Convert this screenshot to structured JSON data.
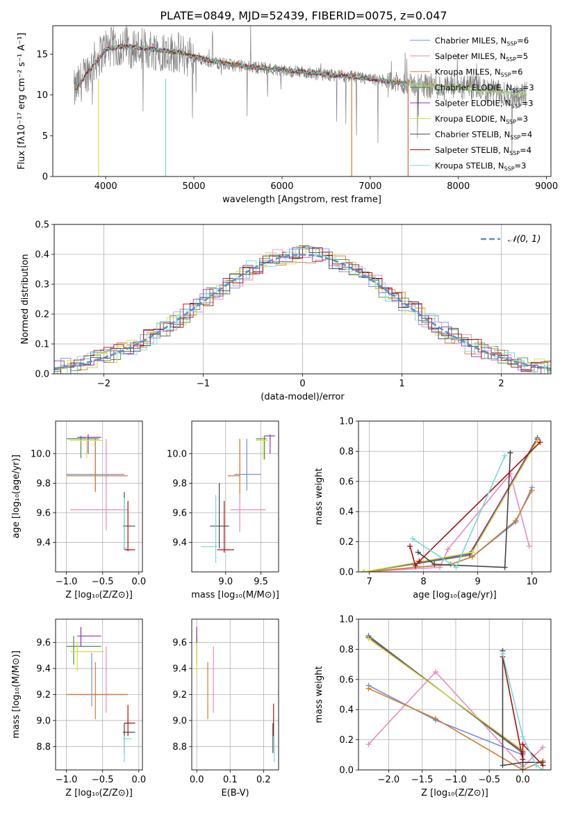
{
  "title": "PLATE=0849, MJD=52439, FIBERID=0075, z=0.047",
  "legend_entries": [
    {
      "key": "chm",
      "text": "Chabrier MILES, N",
      "sub": "SSP",
      "tail": "=6",
      "color": "#6f8fdc"
    },
    {
      "key": "sam",
      "text": "Salpeter MILES, N",
      "sub": "SSP",
      "tail": "=5",
      "color": "#e58bbf"
    },
    {
      "key": "krm",
      "text": "Kroupa MILES, N",
      "sub": "SSP",
      "tail": "=6",
      "color": "#d27d2a"
    },
    {
      "key": "che",
      "text": "Chabrier ELODIE, N",
      "sub": "SSP",
      "tail": "=3",
      "color": "#4a8a4a"
    },
    {
      "key": "sae",
      "text": "Salpeter ELODIE, N",
      "sub": "SSP",
      "tail": "=3",
      "color": "#8e2fb0"
    },
    {
      "key": "kre",
      "text": "Kroupa ELODIE, N",
      "sub": "SSP",
      "tail": "=3",
      "color": "#d3df3c"
    },
    {
      "key": "chs",
      "text": "Chabrier STELIB, N",
      "sub": "SSP",
      "tail": "=4",
      "color": "#444444"
    },
    {
      "key": "sas",
      "text": "Salpeter STELIB, N",
      "sub": "SSP",
      "tail": "=4",
      "color": "#a80d0d"
    },
    {
      "key": "krs",
      "text": "Kroupa STELIB, N",
      "sub": "SSP",
      "tail": "=3",
      "color": "#76d8d8"
    }
  ],
  "chart_data": [
    {
      "id": "spectrum",
      "type": "line",
      "xlabel": "wavelength [Angstrom, rest frame]",
      "ylabel": "Flux [fλ10⁻¹⁷ erg cm⁻² s⁻¹ A⁻¹]",
      "xlim": [
        3400,
        9050
      ],
      "ylim": [
        0,
        18.5
      ],
      "xticks": [
        "4000",
        "5000",
        "6000",
        "7000",
        "8000",
        "9000"
      ],
      "yticks": [
        "0",
        "5",
        "10",
        "15"
      ],
      "data_color": "#808080",
      "model_color": "#76d8d8",
      "data_curve": {
        "x": [
          3650,
          3800,
          4000,
          4200,
          4400,
          4600,
          4800,
          5000,
          5200,
          5400,
          5600,
          5800,
          6000,
          6200,
          6400,
          6600,
          6800,
          7000,
          7200,
          7400,
          7600,
          7800,
          8000,
          8200,
          8400,
          8600,
          8800
        ],
        "y": [
          10.5,
          13.0,
          15.8,
          15.9,
          15.7,
          15.5,
          15.2,
          14.6,
          14.1,
          13.7,
          13.5,
          13.3,
          13.0,
          12.8,
          12.6,
          12.4,
          12.2,
          11.9,
          11.6,
          11.4,
          11.2,
          11.0,
          10.9,
          10.8,
          10.4,
          10.1,
          10.0
        ]
      },
      "model_curve": {
        "x": [
          3650,
          3800,
          4000,
          4200,
          4400,
          4600,
          4800,
          5000,
          5200,
          5400,
          5600,
          5800,
          6000,
          6200,
          6400,
          6600,
          6800,
          7000,
          7200,
          7400,
          7600,
          7800,
          8000,
          8200,
          8400,
          8600
        ],
        "y": [
          10.4,
          12.8,
          15.6,
          16.0,
          15.8,
          15.5,
          15.3,
          14.7,
          14.2,
          13.8,
          13.5,
          13.3,
          13.1,
          12.9,
          12.7,
          12.4,
          12.3,
          12.0,
          11.7,
          11.4,
          11.2,
          11.0,
          10.9,
          10.7,
          10.5,
          10.2
        ]
      },
      "model_dips": [
        3920,
        4680,
        6790,
        7430
      ]
    },
    {
      "id": "residuals",
      "type": "histogram",
      "xlabel": "(data-model)/error",
      "ylabel": "Normed distribution",
      "xlim": [
        -2.5,
        2.5
      ],
      "ylim": [
        0,
        0.5
      ],
      "xticks": [
        "−2",
        "−1",
        "0",
        "1",
        "2"
      ],
      "yticks": [
        "0.0",
        "0.1",
        "0.2",
        "0.3",
        "0.4",
        "0.5"
      ],
      "legend": "𝒩(0, 1)",
      "reference_color": "#5a8fd0"
    },
    {
      "id": "age_vs_z",
      "type": "errorbar",
      "xlabel": "Z [log₁₀(Z/Z⊙)]",
      "ylabel": "age  [log₁₀(age/yr)]",
      "xlim": [
        -1.15,
        0.05
      ],
      "ylim": [
        9.2,
        10.22
      ],
      "xticks": [
        "−1.0",
        "−0.5",
        "0.0"
      ],
      "yticks": [
        "9.4",
        "9.6",
        "9.8",
        "10.0"
      ],
      "points": [
        {
          "s": "chm",
          "x": -0.6,
          "xe": [
            -1.0,
            -0.2
          ],
          "y": 9.86,
          "ye": [
            9.75,
            10.1
          ]
        },
        {
          "s": "sam",
          "x": -0.45,
          "xe": [
            -0.95,
            -0.15
          ],
          "y": 9.62,
          "ye": [
            9.48,
            10.1
          ]
        },
        {
          "s": "krm",
          "x": -0.6,
          "xe": [
            -1.0,
            -0.15
          ],
          "y": 9.85,
          "ye": [
            9.74,
            10.1
          ]
        },
        {
          "s": "che",
          "x": -0.8,
          "xe": [
            -1.0,
            -0.55
          ],
          "y": 10.1,
          "ye": [
            9.97,
            10.12
          ]
        },
        {
          "s": "sae",
          "x": -0.7,
          "xe": [
            -0.85,
            -0.52
          ],
          "y": 10.11,
          "ye": [
            10.0,
            10.13
          ]
        },
        {
          "s": "kre",
          "x": -0.72,
          "xe": [
            -0.95,
            -0.5
          ],
          "y": 10.09,
          "ye": [
            9.97,
            10.12
          ]
        },
        {
          "s": "chs",
          "x": -0.2,
          "xe": [
            -0.22,
            -0.05
          ],
          "y": 9.51,
          "ye": [
            9.35,
            9.74
          ]
        },
        {
          "s": "sas",
          "x": -0.15,
          "xe": [
            -0.2,
            -0.05
          ],
          "y": 9.35,
          "ye": [
            9.34,
            9.68
          ]
        },
        {
          "s": "krs",
          "x": -0.2,
          "xe": [
            -0.22,
            -0.15
          ],
          "y": 9.36,
          "ye": [
            9.35,
            9.7
          ]
        }
      ]
    },
    {
      "id": "age_vs_mass",
      "type": "errorbar",
      "xlabel": "mass [log₁₀(M/M⊙)]",
      "ylabel": "",
      "xlim": [
        8.52,
        9.75
      ],
      "ylim": [
        9.2,
        10.22
      ],
      "xticks": [
        "9.0",
        "9.5"
      ],
      "yticks": [
        "9.4",
        "9.6",
        "9.8",
        "10.0"
      ],
      "points": [
        {
          "s": "chm",
          "x": 9.3,
          "xe": [
            9.12,
            9.5
          ],
          "y": 9.86,
          "ye": [
            9.75,
            10.1
          ]
        },
        {
          "s": "sam",
          "x": 9.2,
          "xe": [
            9.07,
            9.57
          ],
          "y": 9.62,
          "ye": [
            9.47,
            10.1
          ]
        },
        {
          "s": "krm",
          "x": 9.2,
          "xe": [
            9.03,
            9.2
          ],
          "y": 9.85,
          "ye": [
            9.73,
            10.1
          ]
        },
        {
          "s": "che",
          "x": 9.55,
          "xe": [
            9.43,
            9.58
          ],
          "y": 10.1,
          "ye": [
            9.96,
            10.12
          ]
        },
        {
          "s": "sae",
          "x": 9.63,
          "xe": [
            9.55,
            9.7
          ],
          "y": 10.12,
          "ye": [
            10.0,
            10.13
          ]
        },
        {
          "s": "kre",
          "x": 9.53,
          "xe": [
            9.43,
            9.6
          ],
          "y": 10.09,
          "ye": [
            9.96,
            10.12
          ]
        },
        {
          "s": "chs",
          "x": 8.91,
          "xe": [
            8.78,
            9.05
          ],
          "y": 9.51,
          "ye": [
            9.36,
            9.8
          ]
        },
        {
          "s": "sas",
          "x": 8.98,
          "xe": [
            8.88,
            9.12
          ],
          "y": 9.35,
          "ye": [
            9.33,
            9.68
          ]
        },
        {
          "s": "krs",
          "x": 8.86,
          "xe": [
            8.65,
            8.88
          ],
          "y": 9.37,
          "ye": [
            9.26,
            9.72
          ]
        }
      ]
    },
    {
      "id": "weight_vs_age",
      "type": "line",
      "xlabel": "age  [log₁₀(age/yr)]",
      "ylabel": "mass weight",
      "xlim": [
        6.8,
        10.35
      ],
      "ylim": [
        0,
        1.0
      ],
      "xticks": [
        "7",
        "8",
        "9",
        "10"
      ],
      "yticks": [
        "0.0",
        "0.2",
        "0.4",
        "0.6",
        "0.8",
        "1.0"
      ],
      "series": [
        {
          "s": "chm",
          "x": [
            6.9,
            8.5,
            8.9,
            9.7,
            10.0
          ],
          "y": [
            0.0,
            0.05,
            0.1,
            0.33,
            0.56
          ]
        },
        {
          "s": "sam",
          "x": [
            6.9,
            8.3,
            8.45,
            9.6,
            9.95
          ],
          "y": [
            0.0,
            0.03,
            0.15,
            0.65,
            0.17
          ]
        },
        {
          "s": "krm",
          "x": [
            6.9,
            8.5,
            8.9,
            9.7,
            10.0
          ],
          "y": [
            0.0,
            0.05,
            0.1,
            0.34,
            0.54
          ]
        },
        {
          "s": "che",
          "x": [
            6.9,
            8.85,
            10.1
          ],
          "y": [
            0.0,
            0.11,
            0.89
          ]
        },
        {
          "s": "sae",
          "x": [
            6.9,
            8.85,
            10.1
          ],
          "y": [
            0.0,
            0.12,
            0.88
          ]
        },
        {
          "s": "kre",
          "x": [
            6.9,
            8.9,
            10.1
          ],
          "y": [
            0.0,
            0.13,
            0.87
          ]
        },
        {
          "s": "chs",
          "x": [
            7.9,
            8.2,
            9.5,
            9.6
          ],
          "y": [
            0.13,
            0.05,
            0.03,
            0.79
          ]
        },
        {
          "s": "sas",
          "x": [
            7.75,
            7.85,
            7.92,
            10.15
          ],
          "y": [
            0.17,
            0.04,
            0.07,
            0.86
          ]
        },
        {
          "s": "krs",
          "x": [
            7.8,
            8.6,
            9.5
          ],
          "y": [
            0.22,
            0.03,
            0.77
          ]
        }
      ]
    },
    {
      "id": "mass_vs_z",
      "type": "errorbar",
      "xlabel": "Z [log₁₀(Z/Z⊙)]",
      "ylabel": "mass [log₁₀(M/M⊙)]",
      "xlim": [
        -1.15,
        0.05
      ],
      "ylim": [
        8.62,
        9.78
      ],
      "xticks": [
        "−1.0",
        "−0.5",
        "0.0"
      ],
      "yticks": [
        "8.8",
        "9.0",
        "9.2",
        "9.4",
        "9.6"
      ],
      "points": [
        {
          "s": "chm",
          "x": -0.65,
          "xe": [
            -1.0,
            -0.2
          ],
          "y": 9.2,
          "ye": [
            9.11,
            9.52
          ]
        },
        {
          "s": "sam",
          "x": -0.45,
          "xe": [
            -0.95,
            -0.15
          ],
          "y": 9.2,
          "ye": [
            9.06,
            9.57
          ]
        },
        {
          "s": "krm",
          "x": -0.6,
          "xe": [
            -1.0,
            -0.15
          ],
          "y": 9.2,
          "ye": [
            9.01,
            9.45
          ]
        },
        {
          "s": "che",
          "x": -0.9,
          "xe": [
            -1.0,
            -0.52
          ],
          "y": 9.57,
          "ye": [
            9.43,
            9.65
          ]
        },
        {
          "s": "sae",
          "x": -0.8,
          "xe": [
            -0.85,
            -0.52
          ],
          "y": 9.65,
          "ye": [
            9.57,
            9.72
          ]
        },
        {
          "s": "kre",
          "x": -0.85,
          "xe": [
            -0.95,
            -0.48
          ],
          "y": 9.53,
          "ye": [
            9.38,
            9.6
          ]
        },
        {
          "s": "chs",
          "x": -0.2,
          "xe": [
            -0.22,
            -0.05
          ],
          "y": 8.91,
          "ye": [
            8.75,
            8.98
          ]
        },
        {
          "s": "sas",
          "x": -0.15,
          "xe": [
            -0.2,
            -0.05
          ],
          "y": 8.98,
          "ye": [
            8.88,
            9.12
          ]
        },
        {
          "s": "krs",
          "x": -0.2,
          "xe": [
            -0.22,
            -0.1
          ],
          "y": 8.86,
          "ye": [
            8.68,
            8.88
          ]
        }
      ]
    },
    {
      "id": "mass_vs_ebv",
      "type": "errorbar",
      "xlabel": "E(B-V)",
      "ylabel": "",
      "xlim": [
        -0.015,
        0.245
      ],
      "ylim": [
        8.62,
        9.78
      ],
      "xticks": [
        "0.0",
        "0.1",
        "0.2"
      ],
      "yticks": [
        "8.8",
        "9.0",
        "9.2",
        "9.4",
        "9.6"
      ],
      "points": [
        {
          "s": "sam",
          "x": 0.05,
          "y": 9.2,
          "ye": [
            9.06,
            9.57
          ]
        },
        {
          "s": "krm",
          "x": 0.033,
          "y": 9.2,
          "ye": [
            9.01,
            9.45
          ]
        },
        {
          "s": "che",
          "x": 0.0,
          "y": 9.57,
          "ye": [
            9.43,
            9.65
          ]
        },
        {
          "s": "sae",
          "x": 0.0,
          "y": 9.65,
          "ye": [
            9.57,
            9.72
          ]
        },
        {
          "s": "kre",
          "x": 0.0,
          "y": 9.53,
          "ye": [
            9.35,
            9.6
          ]
        },
        {
          "s": "chs",
          "x": 0.228,
          "y": 8.91,
          "ye": [
            8.75,
            8.98
          ]
        },
        {
          "s": "sas",
          "x": 0.23,
          "y": 8.98,
          "ye": [
            8.88,
            9.13
          ]
        },
        {
          "s": "krs",
          "x": 0.232,
          "y": 8.86,
          "ye": [
            8.68,
            8.88
          ]
        }
      ]
    },
    {
      "id": "weight_vs_z",
      "type": "line",
      "xlabel": "Z [log₁₀(Z/Z⊙)]",
      "ylabel": "mass weight",
      "xlim": [
        -2.45,
        0.42
      ],
      "ylim": [
        0,
        1.0
      ],
      "xticks": [
        "−2.0",
        "−1.5",
        "−1.0",
        "−0.5",
        "0.0"
      ],
      "yticks": [
        "0.0",
        "0.2",
        "0.4",
        "0.6",
        "0.8",
        "1.0"
      ],
      "series": [
        {
          "s": "chm",
          "x": [
            -2.3,
            -1.3,
            0.0,
            0.0
          ],
          "y": [
            0.56,
            0.33,
            0.1,
            0.0
          ]
        },
        {
          "s": "sam",
          "x": [
            -2.3,
            -1.3,
            0.0,
            0.3
          ],
          "y": [
            0.17,
            0.65,
            0.02,
            0.15
          ]
        },
        {
          "s": "krm",
          "x": [
            -2.3,
            -1.3,
            0.0,
            0.3
          ],
          "y": [
            0.54,
            0.34,
            0.0,
            0.06
          ]
        },
        {
          "s": "che",
          "x": [
            -2.3,
            0.0,
            0.0
          ],
          "y": [
            0.89,
            0.11,
            0.0
          ]
        },
        {
          "s": "sae",
          "x": [
            -2.3,
            0.0
          ],
          "y": [
            0.88,
            0.12
          ]
        },
        {
          "s": "kre",
          "x": [
            -2.3,
            0.0
          ],
          "y": [
            0.87,
            0.13
          ]
        },
        {
          "s": "chs",
          "x": [
            -0.3,
            -0.3,
            0.0,
            0.3
          ],
          "y": [
            0.79,
            0.03,
            0.05,
            0.05
          ]
        },
        {
          "s": "sas",
          "x": [
            -0.3,
            0.0,
            0.0,
            0.3
          ],
          "y": [
            0.75,
            0.07,
            0.17,
            0.03
          ]
        },
        {
          "s": "krs",
          "x": [
            -0.3,
            0.0,
            0.2,
            0.3
          ],
          "y": [
            0.77,
            0.22,
            0.03,
            0.0
          ]
        }
      ]
    }
  ]
}
